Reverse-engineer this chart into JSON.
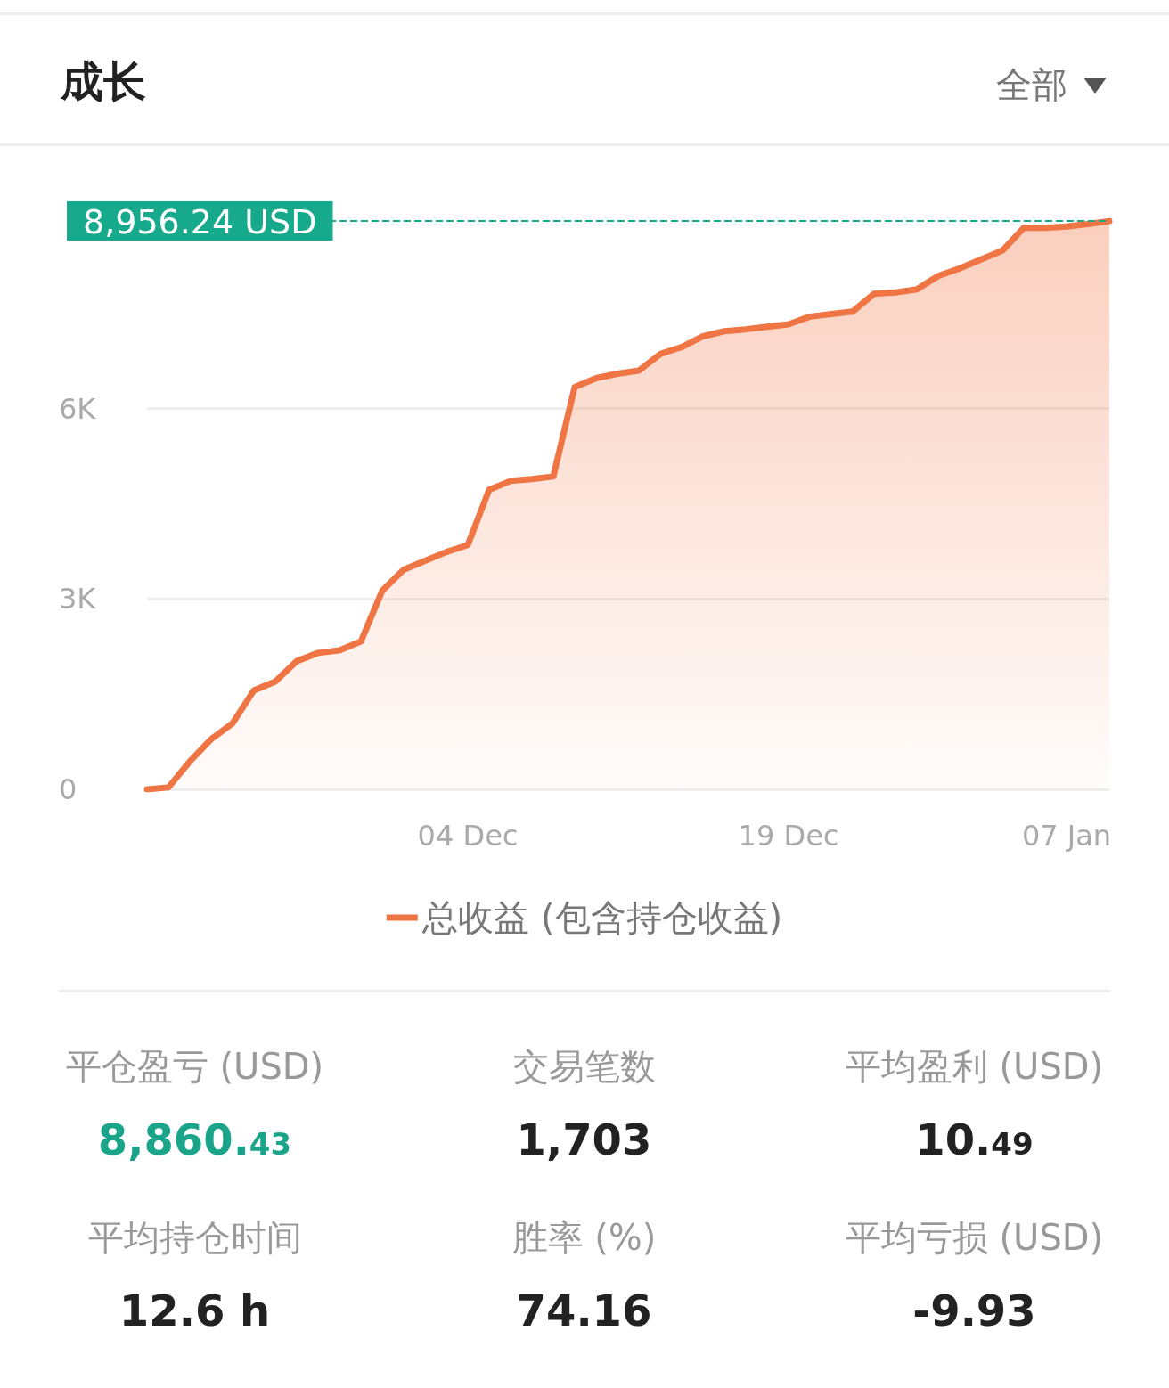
{
  "chart_data": {
    "type": "area",
    "title": "成长",
    "categories": [
      null,
      null,
      null,
      null,
      null,
      null,
      null,
      null,
      null,
      null,
      null,
      null,
      null,
      null,
      null,
      "04 Dec",
      null,
      null,
      null,
      null,
      null,
      null,
      null,
      null,
      null,
      null,
      null,
      null,
      null,
      null,
      "19 Dec",
      null,
      null,
      null,
      null,
      null,
      null,
      null,
      null,
      null,
      null,
      null,
      null,
      "07 Jan",
      null,
      null
    ],
    "series": [
      {
        "name": "总收益 (包含持仓收益)",
        "color": "#f07545",
        "values": [
          0,
          30,
          440,
          790,
          1040,
          1560,
          1700,
          2020,
          2150,
          2190,
          2330,
          3130,
          3460,
          3600,
          3740,
          3850,
          4720,
          4860,
          4890,
          4930,
          6340,
          6480,
          6550,
          6600,
          6860,
          6970,
          7140,
          7220,
          7250,
          7290,
          7330,
          7450,
          7490,
          7530,
          7810,
          7830,
          7880,
          8090,
          8210,
          8350,
          8490,
          8850,
          8850,
          8870,
          8910,
          8956.24
        ]
      }
    ],
    "ylim": [
      0,
      9000
    ],
    "yticks": [
      0,
      {
        "value": 3000,
        "label": "3K"
      },
      {
        "value": 6000,
        "label": "6K"
      }
    ],
    "ref_lines": [
      {
        "axis": "y",
        "value": 8956.24,
        "label": "8,956.24 USD",
        "color": "#17a98c",
        "line_style": "dashed"
      }
    ],
    "grid": "y",
    "legend": "bottom",
    "marker": "none",
    "line_style": "solid",
    "annotations": [
      "全部",
      "平仓盈亏 (USD)",
      "8,860.43",
      "交易笔数",
      "1,703",
      "平均盈利 (USD)",
      "10.49",
      "平均持仓时间",
      "12.6 h",
      "胜率 (%)",
      "74.16",
      "平均亏损 (USD)",
      "-9.93"
    ]
  }
}
